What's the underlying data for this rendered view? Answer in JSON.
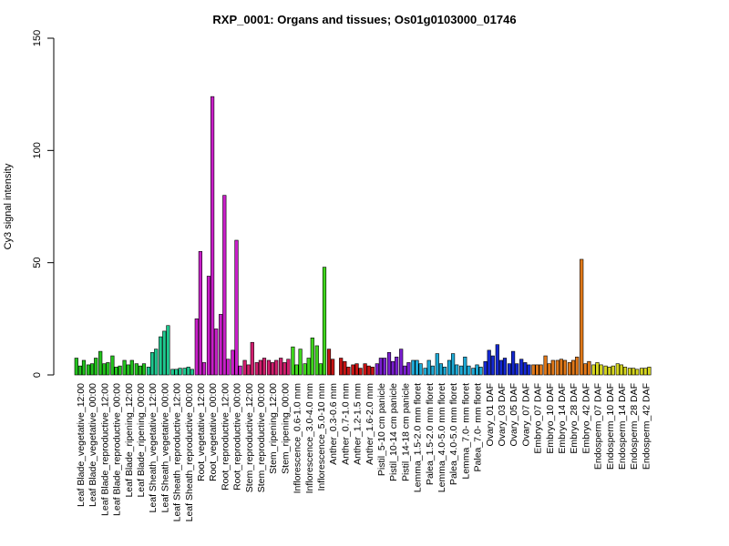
{
  "chart_data": {
    "type": "bar",
    "title": "RXP_0001: Organs and tissues; Os01g0103000_01746",
    "xlabel": "",
    "ylabel": "Cy3 signal intensity",
    "ylim": [
      0,
      150
    ],
    "yticks": [
      0,
      50,
      100,
      150
    ],
    "grid": false,
    "legend": "none",
    "categories": [
      "Leaf Blade_vegetative_12:00",
      "Leaf Blade_vegetative_00:00",
      "Leaf Blade_reproductive_12:00",
      "Leaf Blade_reproductive_00:00",
      "Leaf Blade_ripening_12:00",
      "Leaf Blade_ripening_00:00",
      "Leaf Sheath_vegetative_12:00",
      "Leaf Sheath_vegetative_00:00",
      "Leaf Sheath_reproductive_12:00",
      "Leaf Sheath_reproductive_00:00",
      "Root_vegetative_12:00",
      "Root_vegetative_00:00",
      "Root_reproductive_12:00",
      "Root_reproductive_00:00",
      "Stem_reproductive_12:00",
      "Stem_reproductive_00:00",
      "Stem_ripening_12:00",
      "Stem_ripening_00:00",
      "Inflorescence_0.6-1.0 mm",
      "Inflorescence_3.0-4.0 mm",
      "Inflorescence_5.0-10 mm",
      "Anther_0.3-0.6 mm",
      "Anther_0.7-1.0 mm",
      "Anther_1.2-1.5 mm",
      "Anther_1.6-2.0 mm",
      "Pistil_5-10 cm panicle",
      "Pistil_10-14 cm panicle",
      "Pistil_14-18 cm panicle",
      "Lemma_1.5-2.0 mm floret",
      "Palea_1.5-2.0 mm floret",
      "Lemma_4.0-5.0 mm floret",
      "Palea_4.0-5.0 mm floret",
      "Lemma_7.0- mm floret",
      "Palea_7.0- mm floret",
      "Ovary_01 DAF",
      "Ovary_03 DAF",
      "Ovary_05 DAF",
      "Ovary_07 DAF",
      "Embryo_07 DAF",
      "Embryo_10 DAF",
      "Embryo_14 DAF",
      "Embryo_28 DAF",
      "Embryo_42 DAF",
      "Endosperm_07 DAF",
      "Endosperm_10 DAF",
      "Endosperm_14 DAF",
      "Endosperm_28 DAF",
      "Endosperm_42 DAF"
    ],
    "group_colors": [
      "#22c21d",
      "#22c21d",
      "#22c21d",
      "#22c21d",
      "#22c21d",
      "#22c21d",
      "#1ec98f",
      "#1ec98f",
      "#1ec98f",
      "#1ec98f",
      "#c81ec8",
      "#c81ec8",
      "#c81ec8",
      "#c81ec8",
      "#d11e6e",
      "#d11e6e",
      "#d11e6e",
      "#d11e6e",
      "#3fd61c",
      "#3fd61c",
      "#3fd61c",
      "#c81414",
      "#c81414",
      "#c81414",
      "#c81414",
      "#7a1ed1",
      "#7a1ed1",
      "#7a1ed1",
      "#1eaad6",
      "#1eaad6",
      "#1eaad6",
      "#1eaad6",
      "#1eaad6",
      "#1eaad6",
      "#1428d2",
      "#1428d2",
      "#1428d2",
      "#1428d2",
      "#e07818",
      "#e07818",
      "#e07818",
      "#e07818",
      "#e07818",
      "#d6d61e",
      "#d6d61e",
      "#d6d61e",
      "#d6d61e",
      "#d6d61e"
    ],
    "values": [
      [
        7.5,
        4,
        6.5
      ],
      [
        4.5,
        5,
        7.5
      ],
      [
        10.5,
        5,
        5.5
      ],
      [
        8.5,
        3.5,
        4
      ],
      [
        6.5,
        4.5,
        6.5
      ],
      [
        5,
        4,
        5
      ],
      [
        3.5,
        10,
        11.5
      ],
      [
        17,
        19.5,
        22
      ],
      [
        2.5,
        2.5,
        3
      ],
      [
        3,
        3.5,
        2.5
      ],
      [
        25,
        55,
        5.5
      ],
      [
        44,
        124,
        20.5
      ],
      [
        27,
        80,
        7
      ],
      [
        11,
        60,
        4
      ],
      [
        6.5,
        4.5,
        14.5
      ],
      [
        5.5,
        6.5,
        7.5
      ],
      [
        6.5,
        5.5,
        6.5
      ],
      [
        7.5,
        5.5,
        7
      ],
      [
        12.5,
        4.5,
        11.5
      ],
      [
        5,
        7.5,
        16.5
      ],
      [
        13,
        5,
        48
      ],
      [
        11.5,
        7,
        0
      ],
      [
        7.5,
        6,
        3.5
      ],
      [
        4.5,
        5,
        3
      ],
      [
        5,
        4,
        3.5
      ],
      [
        5,
        7.5,
        7.5
      ],
      [
        10,
        6,
        8
      ],
      [
        11.5,
        4,
        5.5
      ],
      [
        6.5,
        6.5,
        5
      ],
      [
        3,
        6.5,
        4
      ],
      [
        9.5,
        5,
        3.5
      ],
      [
        6.5,
        9.5,
        4.5
      ],
      [
        4,
        8,
        4
      ],
      [
        3,
        4.5,
        3.5
      ],
      [
        6,
        11,
        8.5
      ],
      [
        13.5,
        6.5,
        7.5
      ],
      [
        5,
        10.5,
        5
      ],
      [
        7,
        5.5,
        4.5
      ],
      [
        4.5,
        4.5,
        4.5
      ],
      [
        8.5,
        5,
        6.5
      ],
      [
        6.5,
        7,
        6.5
      ],
      [
        5.5,
        6.5,
        8
      ],
      [
        51.5,
        5,
        6
      ],
      [
        4.5,
        5.5,
        4.5
      ],
      [
        4,
        3.5,
        4
      ],
      [
        5,
        4.5,
        3.5
      ],
      [
        3,
        3,
        2.5
      ],
      [
        3,
        3,
        3.5
      ]
    ]
  }
}
